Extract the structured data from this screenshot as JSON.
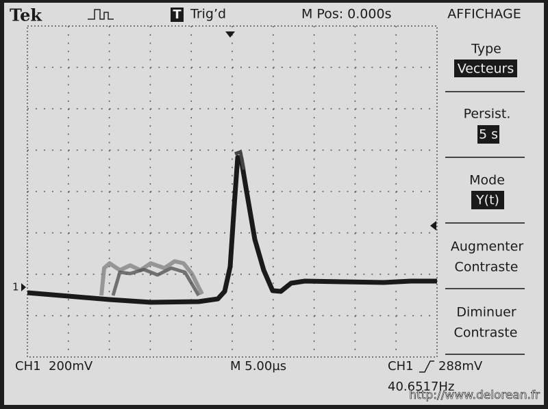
{
  "header": {
    "brand": "Tek",
    "trigger_icon": "T",
    "trigger_status": "Trig’d",
    "position": "M Pos: 0.000s",
    "menu_title": "AFFICHAGE"
  },
  "menu": [
    {
      "label": "Type",
      "value": "Vecteurs"
    },
    {
      "label": "Persist.",
      "value": "5 s"
    },
    {
      "label": "Mode",
      "value": "Y(t)"
    },
    {
      "lines": [
        "Augmenter",
        "Contraste"
      ]
    },
    {
      "lines": [
        "Diminuer",
        "Contraste"
      ]
    }
  ],
  "screen": {
    "channel_marker": "1"
  },
  "footer": {
    "channel_scale": "CH1  200mV",
    "time_scale": "M 5.00µs",
    "trigger_channel": "CH1",
    "trigger_level": "288mV",
    "frequency": "40.6517Hz"
  },
  "watermark": "http://www.delorean.fr"
}
